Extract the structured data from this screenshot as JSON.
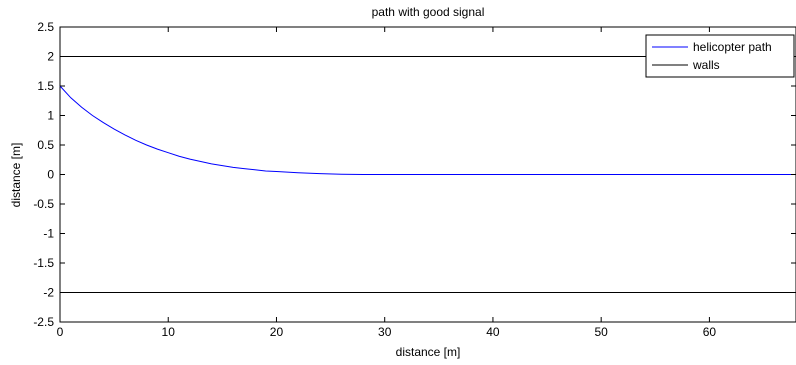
{
  "chart_data": {
    "type": "line",
    "title": "path with good signal",
    "xlabel": "distance [m]",
    "ylabel": "distance [m]",
    "xlim": [
      0,
      68
    ],
    "ylim": [
      -2.5,
      2.5
    ],
    "x_ticks": [
      0,
      10,
      20,
      30,
      40,
      50,
      60
    ],
    "x_tick_labels": [
      "0",
      "10",
      "20",
      "30",
      "40",
      "50",
      "60"
    ],
    "y_ticks": [
      2.5,
      2,
      1.5,
      1,
      0.5,
      0,
      -0.5,
      -1,
      -1.5,
      -2,
      -2.5
    ],
    "y_tick_labels": [
      "2.5",
      "2",
      "1.5",
      "1",
      "0.5",
      "0",
      "-0.5",
      "-1",
      "-1.5",
      "-2",
      "-2.5"
    ],
    "grid": false,
    "legend_position": "top-right",
    "series": [
      {
        "name": "helicopter path",
        "color": "#0000ff",
        "x": [
          0,
          1,
          2,
          3,
          4,
          5,
          6,
          7,
          8,
          9,
          10,
          11,
          12,
          13,
          14,
          15,
          16,
          17,
          18,
          19,
          20,
          22,
          24,
          26,
          28,
          30,
          35,
          40,
          45,
          50,
          55,
          60,
          65,
          68
        ],
        "y": [
          1.5,
          1.3,
          1.14,
          1.0,
          0.88,
          0.77,
          0.67,
          0.58,
          0.5,
          0.43,
          0.37,
          0.31,
          0.26,
          0.22,
          0.18,
          0.15,
          0.12,
          0.1,
          0.08,
          0.06,
          0.05,
          0.03,
          0.015,
          0.005,
          0.0,
          0.0,
          0.0,
          0.0,
          0.0,
          0.0,
          0.0,
          0.0,
          0.0,
          0.0
        ]
      },
      {
        "name": "walls",
        "color": "#000000",
        "segments": [
          {
            "x": [
              0,
              68
            ],
            "y": [
              2,
              2
            ]
          },
          {
            "x": [
              0,
              68
            ],
            "y": [
              -2,
              -2
            ]
          }
        ]
      }
    ]
  }
}
